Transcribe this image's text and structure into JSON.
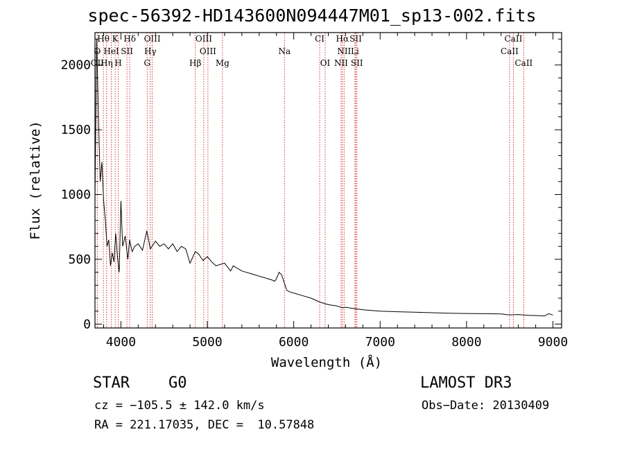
{
  "chart_data": {
    "type": "line",
    "title": "spec-56392-HD143600N094447M01_sp13-002.fits",
    "xlabel": "Wavelength (Å)",
    "ylabel": "Flux (relative)",
    "xlim": [
      3700,
      9100
    ],
    "ylim": [
      -30,
      2250
    ],
    "xticks": [
      4000,
      5000,
      6000,
      7000,
      8000,
      9000
    ],
    "yticks": [
      0,
      500,
      1000,
      1500,
      2000
    ],
    "xtick_labels": [
      "4000",
      "5000",
      "6000",
      "7000",
      "8000",
      "9000"
    ],
    "ytick_labels": [
      "0",
      "500",
      "1000",
      "1500",
      "2000"
    ],
    "grid": false,
    "series": [
      {
        "name": "spectrum",
        "x": [
          3700,
          3720,
          3740,
          3760,
          3780,
          3800,
          3820,
          3840,
          3860,
          3880,
          3900,
          3920,
          3940,
          3960,
          3980,
          4000,
          4020,
          4050,
          4080,
          4100,
          4130,
          4160,
          4200,
          4250,
          4300,
          4340,
          4400,
          4450,
          4500,
          4550,
          4600,
          4650,
          4700,
          4750,
          4800,
          4860,
          4900,
          4950,
          5000,
          5050,
          5100,
          5150,
          5200,
          5270,
          5300,
          5350,
          5400,
          5450,
          5500,
          5550,
          5600,
          5650,
          5700,
          5750,
          5780,
          5800,
          5830,
          5860,
          5890,
          5920,
          5950,
          6000,
          6100,
          6200,
          6300,
          6400,
          6500,
          6563,
          6600,
          6700,
          6800,
          6900,
          7000,
          7200,
          7400,
          7600,
          7800,
          8000,
          8200,
          8400,
          8500,
          8600,
          8700,
          8800,
          8900,
          8950,
          9000
        ],
        "y": [
          1000,
          2200,
          1600,
          1100,
          1250,
          950,
          800,
          600,
          650,
          450,
          550,
          480,
          700,
          520,
          400,
          950,
          600,
          680,
          500,
          650,
          560,
          600,
          620,
          570,
          720,
          580,
          640,
          600,
          620,
          580,
          620,
          560,
          600,
          580,
          470,
          560,
          540,
          490,
          520,
          480,
          450,
          460,
          470,
          410,
          450,
          430,
          410,
          400,
          390,
          380,
          370,
          360,
          350,
          340,
          330,
          350,
          400,
          380,
          320,
          260,
          250,
          240,
          220,
          200,
          170,
          150,
          140,
          125,
          130,
          120,
          110,
          105,
          100,
          95,
          92,
          88,
          84,
          82,
          80,
          78,
          70,
          74,
          68,
          66,
          62,
          80,
          70
        ]
      }
    ],
    "spectral_lines": {
      "row1": [
        {
          "label": "Hθ",
          "x": 3797
        },
        {
          "label": "K",
          "x": 3934
        },
        {
          "label": "Hδ",
          "x": 4102
        },
        {
          "label": "OIII",
          "x": 4363
        },
        {
          "label": "OIII",
          "x": 4959
        },
        {
          "label": "CI",
          "x": 6300
        },
        {
          "label": "Hα",
          "x": 6563
        },
        {
          "label": "SII",
          "x": 6717
        },
        {
          "label": "CaII",
          "x": 8542
        }
      ],
      "row2": [
        {
          "label": "O",
          "x": 3727
        },
        {
          "label": "HeI",
          "x": 3889
        },
        {
          "label": "SII",
          "x": 4070
        },
        {
          "label": "Hγ",
          "x": 4340
        },
        {
          "label": "OIII",
          "x": 5007
        },
        {
          "label": "Na",
          "x": 5893
        },
        {
          "label": "NII",
          "x": 6583
        },
        {
          "label": "Li",
          "x": 6708
        },
        {
          "label": "CaII",
          "x": 8498
        }
      ],
      "row3": [
        {
          "label": "OII",
          "x": 3727
        },
        {
          "label": "Hη",
          "x": 3835
        },
        {
          "label": "H",
          "x": 3969
        },
        {
          "label": "G",
          "x": 4304
        },
        {
          "label": "Hβ",
          "x": 4861
        },
        {
          "label": "Mg",
          "x": 5175
        },
        {
          "label": "OI",
          "x": 6364
        },
        {
          "label": "NII",
          "x": 6548
        },
        {
          "label": "SII",
          "x": 6731
        },
        {
          "label": "CaII",
          "x": 8662
        }
      ]
    }
  },
  "info": {
    "object_class": "STAR",
    "subclass": "G0",
    "survey": "LAMOST DR3",
    "cz": "cz = −105.5 ± 142.0 km/s",
    "obs_date": "Obs−Date: 20130409",
    "radec": "RA = 221.17035, DEC =  10.57848"
  },
  "colors": {
    "line_marker": "#cc0000",
    "spectrum": "#000000",
    "axis": "#000000"
  }
}
